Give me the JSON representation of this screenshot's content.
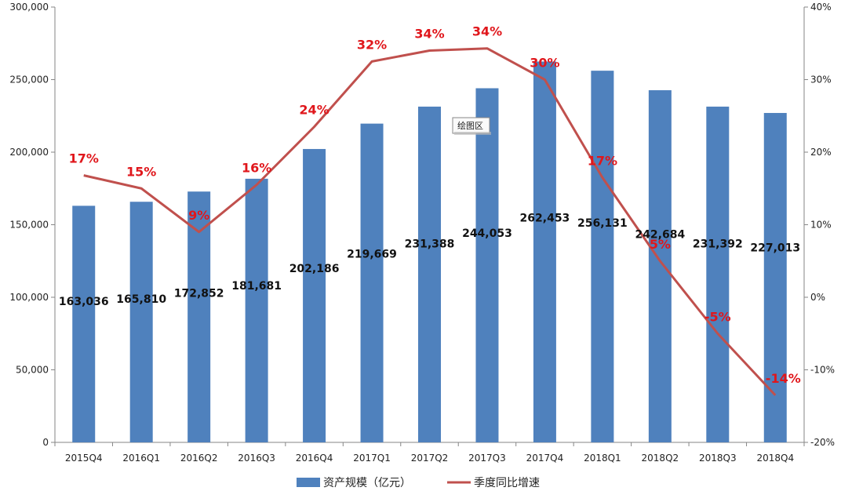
{
  "chart_data": {
    "type": "bar",
    "categories": [
      "2015Q4",
      "2016Q1",
      "2016Q2",
      "2016Q3",
      "2016Q4",
      "2017Q1",
      "2017Q2",
      "2017Q3",
      "2017Q4",
      "2018Q1",
      "2018Q2",
      "2018Q3",
      "2018Q4"
    ],
    "series": [
      {
        "name": "资产规模（亿元）",
        "type": "bar",
        "axis": "left",
        "color": "#4f81bd",
        "values": [
          163036,
          165810,
          172852,
          181681,
          202186,
          219669,
          231388,
          244053,
          262453,
          256131,
          242684,
          231392,
          227013
        ],
        "labels": [
          "163,036",
          "165,810",
          "172,852",
          "181,681",
          "202,186",
          "219,669",
          "231,388",
          "244,053",
          "262,453",
          "256,131",
          "242,684",
          "231,392",
          "227,013"
        ]
      },
      {
        "name": "季度同比增速",
        "type": "line",
        "axis": "right",
        "color": "#c0504d",
        "values": [
          16.8,
          15.0,
          9.0,
          15.5,
          23.5,
          32.5,
          34.0,
          34.3,
          30.0,
          16.5,
          5.0,
          -5.0,
          -13.5
        ],
        "labels": [
          "17%",
          "15%",
          "9%",
          "16%",
          "24%",
          "32%",
          "34%",
          "34%",
          "30%",
          "17%",
          "5%",
          "-5%",
          "-14%"
        ]
      }
    ],
    "y_left": {
      "lim": [
        0,
        300000
      ],
      "ticks": [
        "0",
        "50,000",
        "100,000",
        "150,000",
        "200,000",
        "250,000",
        "300,000"
      ]
    },
    "y_right": {
      "lim": [
        -20,
        40
      ],
      "ticks": [
        "-20%",
        "-10%",
        "0%",
        "10%",
        "20%",
        "30%",
        "40%"
      ]
    },
    "title": "",
    "xlabel": "",
    "ylabel": "",
    "grid": false,
    "legend_position": "bottom-center",
    "tooltip": "绘图区"
  }
}
